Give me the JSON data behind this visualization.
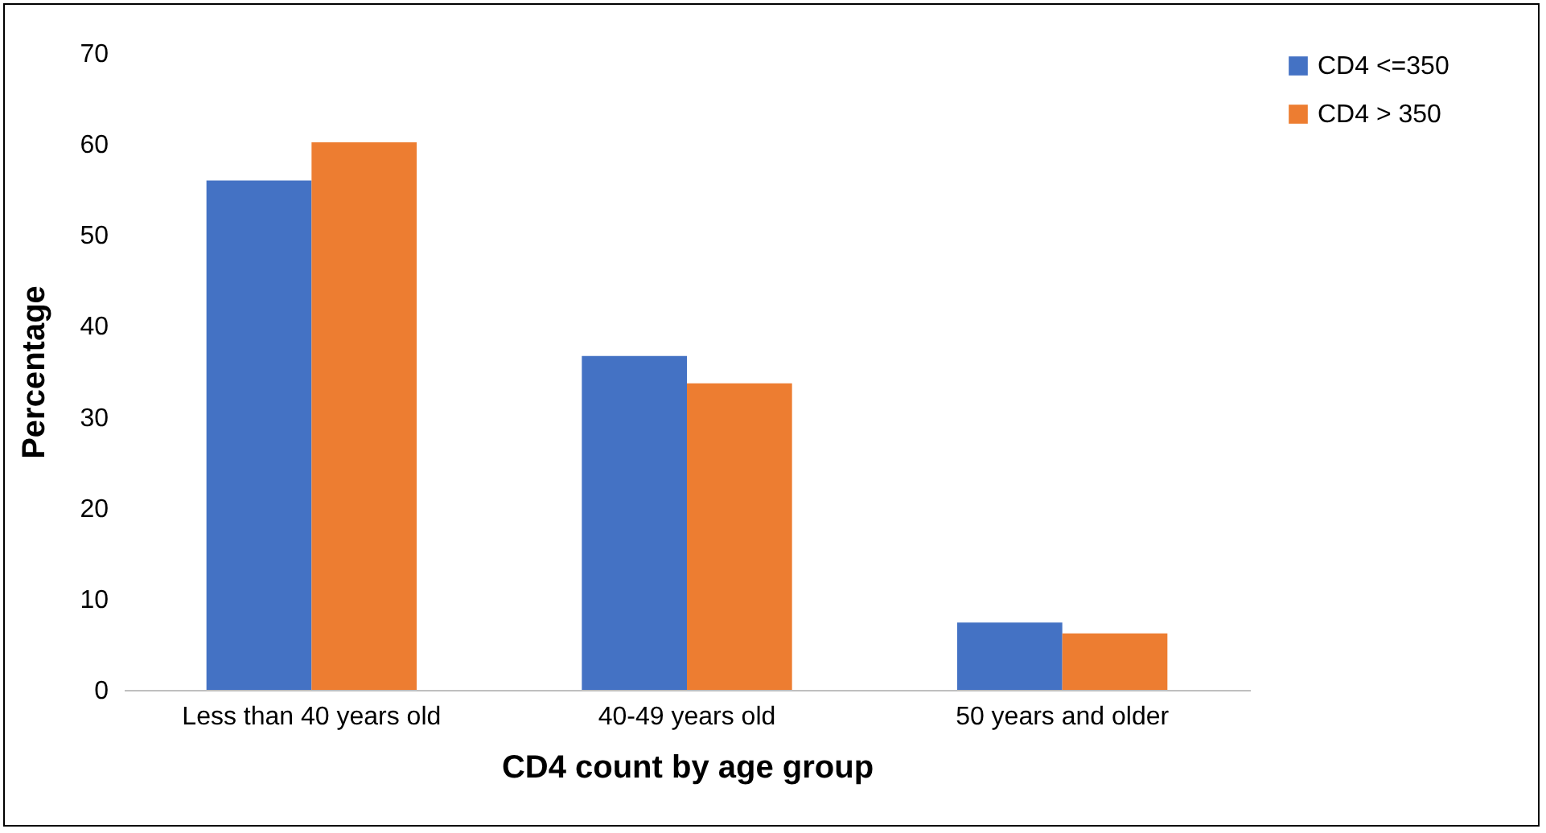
{
  "chart_data": {
    "type": "bar",
    "xlabel": "CD4 count by age group",
    "ylabel": "Percentage",
    "categories": [
      "Less than 40 years old",
      "40-49 years old",
      "50 years and older"
    ],
    "series": [
      {
        "name": "CD4 <=350",
        "color": "#4472c4",
        "values": [
          56.0,
          36.7,
          7.4
        ]
      },
      {
        "name": "CD4 > 350",
        "color": "#ed7d31",
        "values": [
          60.2,
          33.7,
          6.2
        ]
      }
    ],
    "ylim": [
      0,
      70
    ],
    "yticks": [
      0,
      10,
      20,
      30,
      40,
      50,
      60,
      70
    ],
    "grid": false,
    "legend": "right"
  }
}
